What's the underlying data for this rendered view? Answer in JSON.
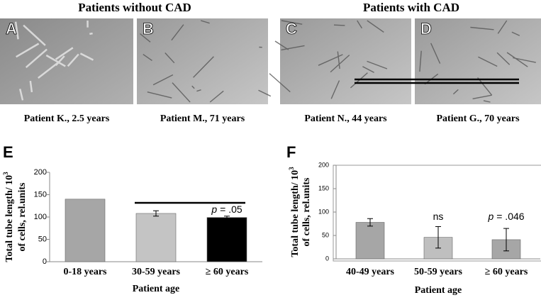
{
  "figure": {
    "groups": [
      "Patients without CAD",
      "Patients with CAD"
    ],
    "micrographs": [
      {
        "letter": "A",
        "caption": "Patient K., 2.5 years"
      },
      {
        "letter": "B",
        "caption": "Patient M., 71 years"
      },
      {
        "letter": "C",
        "caption": "Patient N., 44 years"
      },
      {
        "letter": "D",
        "caption": "Patient G., 70 years"
      }
    ]
  },
  "chart_data": [
    {
      "type": "bar",
      "panel": "E",
      "categories": [
        "0-18 years",
        "30-59 years",
        "≥ 60 years"
      ],
      "values": [
        140,
        108,
        99
      ],
      "errors": [
        null,
        6,
        3
      ],
      "colors": [
        "#a6a6a6",
        "#c4c4c4",
        "#000000"
      ],
      "ylim": [
        0,
        200
      ],
      "yticks": [
        0,
        50,
        100,
        150,
        200
      ],
      "ylabel": {
        "text": "Total tube length/ 10",
        "sup": "3",
        "line2": "of cells,  rel.units"
      },
      "xlabel": "Patient age",
      "annotations": [
        {
          "italic": "p",
          "text": "= .05"
        }
      ]
    },
    {
      "type": "bar",
      "panel": "F",
      "categories": [
        "40-49 years",
        "50-59 years",
        "≥ 60 years"
      ],
      "values": [
        78,
        46,
        41
      ],
      "errors": [
        8,
        23,
        24
      ],
      "colors": [
        "#a6a6a6",
        "#bfbfbf",
        "#a6a6a6"
      ],
      "ylim": [
        0,
        200
      ],
      "yticks": [
        0,
        50,
        100,
        150,
        200
      ],
      "ylabel": {
        "text": "Total tube length/ 10",
        "sup": "3",
        "line2": "of cells,  rel.units"
      },
      "xlabel": "Patient age",
      "annotations": [
        {
          "text": "ns"
        },
        {
          "italic": "p",
          "text": "= .046"
        }
      ]
    }
  ]
}
